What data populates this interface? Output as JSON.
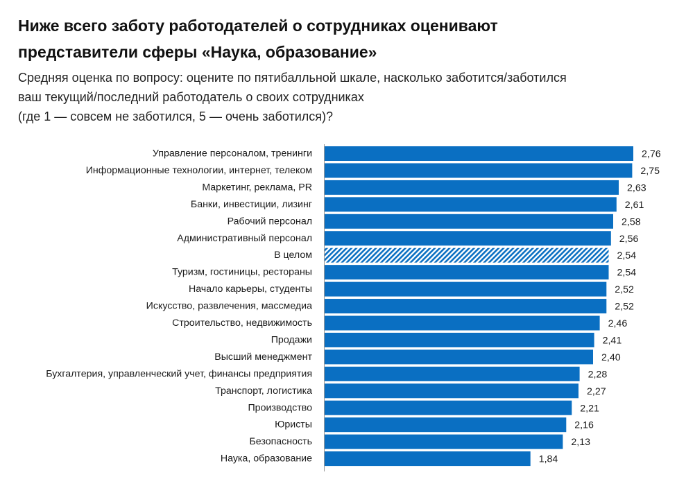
{
  "title": "Ниже всего заботу работодателей о сотрудниках оценивают\nпредставители сферы «Наука, образование»",
  "subtitle": "Средняя оценка по вопросу: оцените по пятибалльной шкале, насколько заботится/заботился\nваш текущий/последний работодатель о своих сотрудниках\n(где 1 — совсем не заботился, 5 — очень заботился)?",
  "colors": {
    "bar": "#0a6fc2",
    "bar_highlight_hatch": "#0a6fc2",
    "text": "#1a1a1a"
  },
  "chart_data": {
    "type": "bar",
    "orientation": "horizontal",
    "title": "Ниже всего заботу работодателей о сотрудниках оценивают представители сферы «Наука, образование»",
    "xlabel": "",
    "ylabel": "",
    "xlim": [
      0,
      2.76
    ],
    "grid": false,
    "legend": "none",
    "categories": [
      "Управление персоналом, тренинги",
      "Информационные технологии, интернет, телеком",
      "Маркетинг, реклама, PR",
      "Банки, инвестиции, лизинг",
      "Рабочий персонал",
      "Административный персонал",
      "В целом",
      "Туризм, гостиницы, рестораны",
      "Начало карьеры, студенты",
      "Искусство, развлечения, массмедиа",
      "Строительство, недвижимость",
      "Продажи",
      "Высший менеджмент",
      "Бухгалтерия, управленческий учет, финансы предприятия",
      "Транспорт, логистика",
      "Производство",
      "Юристы",
      "Безопасность",
      "Наука, образование"
    ],
    "values": [
      2.76,
      2.75,
      2.63,
      2.61,
      2.58,
      2.56,
      2.54,
      2.54,
      2.52,
      2.52,
      2.46,
      2.41,
      2.4,
      2.28,
      2.27,
      2.21,
      2.16,
      2.13,
      1.84
    ],
    "value_labels": [
      "2,76",
      "2,75",
      "2,63",
      "2,61",
      "2,58",
      "2,56",
      "2,54",
      "2,54",
      "2,52",
      "2,52",
      "2,46",
      "2,41",
      "2,40",
      "2,28",
      "2,27",
      "2,21",
      "2,16",
      "2,13",
      "1,84"
    ],
    "highlighted": [
      "В целом"
    ]
  }
}
